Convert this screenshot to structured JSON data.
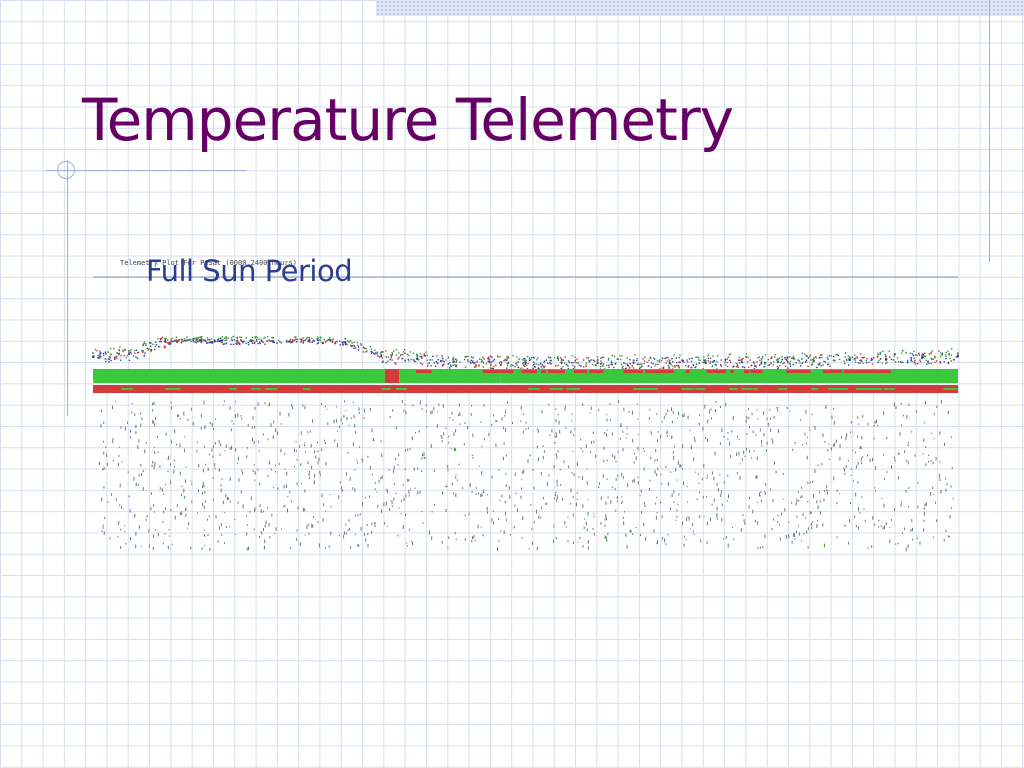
{
  "slide": {
    "title": "Temperature Telemetry",
    "callout": "Full Sun Period"
  },
  "colors": {
    "title": "#660066",
    "callout": "#2a3d8f",
    "grid": "#d6def0",
    "series_red": "#c0392b",
    "series_green": "#2e9e3e",
    "series_blue": "#2b3fa8",
    "series_gray": "#666666",
    "status_green": "#3cc83c",
    "status_red": "#d43c3c"
  },
  "chart_data": {
    "type": "scatter",
    "title": "Telemetry Plot For PCSat (0000 2400 hours)",
    "xlabel": "",
    "ylabel": "",
    "xlim": [
      0,
      24
    ],
    "ylim": [
      0,
      100
    ],
    "grid": false,
    "series": [
      {
        "color": "#c0392b",
        "x": [
          0,
          1,
          2,
          3,
          4,
          5,
          6,
          7,
          8,
          9,
          10,
          11,
          12,
          13,
          14,
          15,
          16,
          17,
          18,
          19,
          20,
          21,
          22,
          23,
          24
        ],
        "values": [
          43,
          46,
          58,
          59,
          58,
          58,
          59,
          57,
          44,
          41,
          38,
          38,
          37,
          37,
          37,
          37,
          37,
          37,
          38,
          38,
          39,
          40,
          41,
          42,
          44
        ]
      },
      {
        "color": "#2e9e3e",
        "x": [
          0,
          1,
          2,
          3,
          4,
          5,
          6,
          7,
          8,
          9,
          10,
          11,
          12,
          13,
          14,
          15,
          16,
          17,
          18,
          19,
          20,
          21,
          22,
          23,
          24
        ],
        "values": [
          46,
          48,
          60,
          61,
          61,
          61,
          61,
          60,
          47,
          43,
          40,
          40,
          39,
          39,
          39,
          39,
          39,
          39,
          40,
          40,
          41,
          42,
          43,
          44,
          46
        ]
      },
      {
        "color": "#2b3fa8",
        "x": [
          0,
          1,
          2,
          3,
          4,
          5,
          6,
          7,
          8,
          9,
          10,
          11,
          12,
          13,
          14,
          15,
          16,
          17,
          18,
          19,
          20,
          21,
          22,
          23,
          24
        ],
        "values": [
          42,
          45,
          57,
          58,
          57,
          57,
          58,
          56,
          43,
          40,
          37,
          37,
          36,
          36,
          36,
          36,
          36,
          36,
          37,
          37,
          38,
          39,
          40,
          41,
          43
        ]
      }
    ],
    "status_bars": [
      {
        "segments": [
          {
            "start": 0,
            "end": 8.1,
            "state": "green"
          },
          {
            "start": 8.1,
            "end": 8.5,
            "state": "red"
          },
          {
            "start": 8.5,
            "end": 11.3,
            "state": "green"
          },
          {
            "start": 11.3,
            "end": 24,
            "state": "green"
          }
        ]
      },
      {
        "segments": [
          {
            "start": 0,
            "end": 24,
            "state": "red"
          }
        ]
      }
    ]
  }
}
